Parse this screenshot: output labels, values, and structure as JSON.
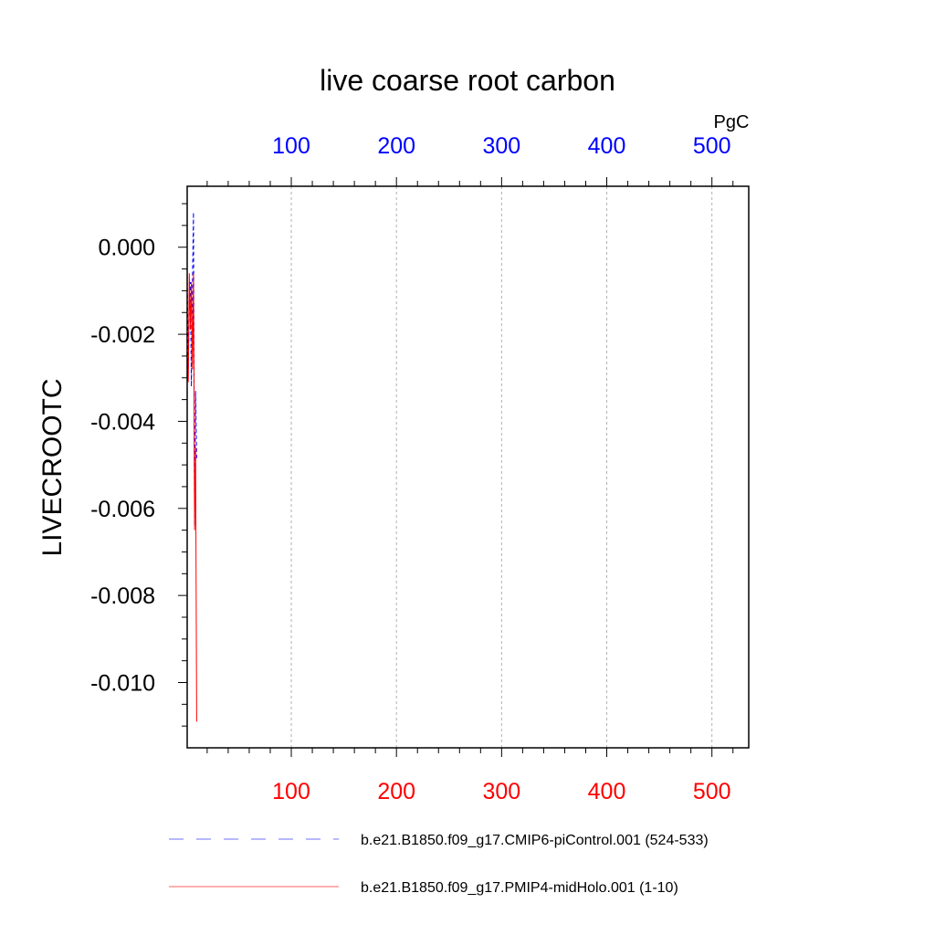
{
  "chart_data": {
    "type": "line",
    "title": "live coarse root carbon",
    "ylabel": "LIVECROOTC",
    "units": "PgC",
    "xlim": [
      1,
      535
    ],
    "ylim": [
      -0.0115,
      0.0014
    ],
    "x_ticks_top": [
      100,
      200,
      300,
      400,
      500
    ],
    "x_tick_labels_top": [
      "100",
      "200",
      "300",
      "400",
      "500"
    ],
    "x_ticks_bottom": [
      100,
      200,
      300,
      400,
      500
    ],
    "x_tick_labels_bottom": [
      "100",
      "200",
      "300",
      "400",
      "500"
    ],
    "y_ticks": [
      0.0,
      -0.002,
      -0.004,
      -0.006,
      -0.008,
      -0.01
    ],
    "y_tick_labels": [
      "0.000",
      "-0.002",
      "-0.004",
      "-0.006",
      "-0.008",
      "-0.010"
    ],
    "grid": "vertical dashed at top-axis ticks",
    "legend_position": "bottom",
    "series": [
      {
        "name": "b.e21.B1850.f09_g17.CMIP6-piControl.001 (524-533)",
        "color": "#0000ff",
        "style": "dashed",
        "x": [
          1,
          2,
          3,
          4,
          5,
          6,
          7,
          8,
          9,
          10
        ],
        "values": [
          -0.0005,
          -0.0028,
          -0.0012,
          -0.0008,
          -0.0032,
          -0.0008,
          0.0008,
          -0.0064,
          -0.0033,
          -0.0049
        ]
      },
      {
        "name": "b.e21.B1850.f09_g17.PMIP4-midHolo.001 (1-10)",
        "color": "#ff0000",
        "style": "solid",
        "x": [
          1,
          2,
          3,
          4,
          5,
          6,
          7,
          8,
          9,
          10
        ],
        "values": [
          -0.0025,
          -0.0031,
          -0.0006,
          -0.0019,
          -0.0008,
          -0.0028,
          -0.0006,
          -0.0065,
          -0.0046,
          -0.0109
        ]
      }
    ]
  }
}
